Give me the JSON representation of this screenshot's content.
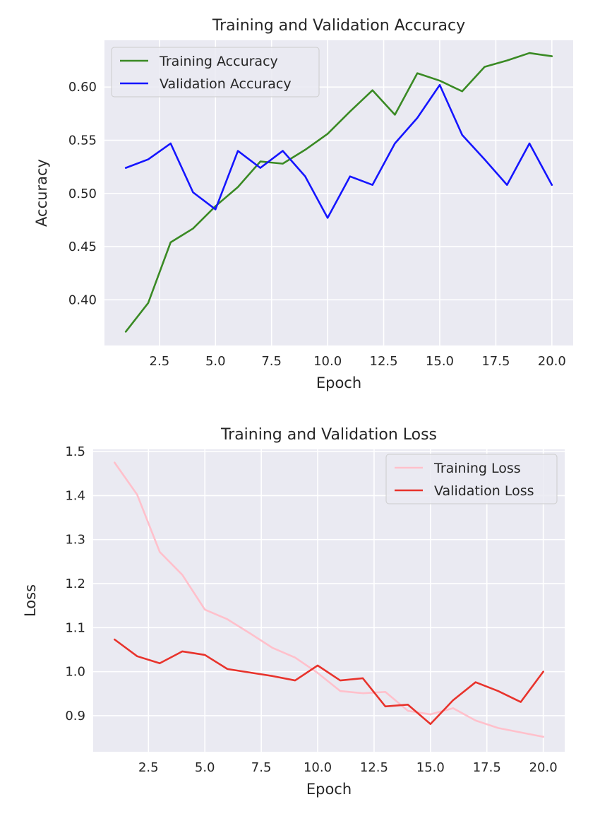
{
  "chart_data": [
    {
      "type": "line",
      "title": "Training and Validation Accuracy",
      "xlabel": "Epoch",
      "ylabel": "Accuracy",
      "xlim": [
        0.05,
        20.95
      ],
      "ylim": [
        0.357,
        0.644
      ],
      "xticks": [
        2.5,
        5.0,
        7.5,
        10.0,
        12.5,
        15.0,
        17.5,
        20.0
      ],
      "xtick_labels": [
        "2.5",
        "5.0",
        "7.5",
        "10.0",
        "12.5",
        "15.0",
        "17.5",
        "20.0"
      ],
      "yticks": [
        0.4,
        0.45,
        0.5,
        0.55,
        0.6
      ],
      "ytick_labels": [
        "0.40",
        "0.45",
        "0.50",
        "0.55",
        "0.60"
      ],
      "grid": true,
      "legend_position": "top-left",
      "x": [
        1,
        2,
        3,
        4,
        5,
        6,
        7,
        8,
        9,
        10,
        11,
        12,
        13,
        14,
        15,
        16,
        17,
        18,
        19,
        20
      ],
      "series": [
        {
          "name": "Training Accuracy",
          "color": "#3a8a24",
          "values": [
            0.37,
            0.397,
            0.454,
            0.467,
            0.488,
            0.506,
            0.53,
            0.528,
            0.541,
            0.556,
            0.577,
            0.597,
            0.574,
            0.613,
            0.606,
            0.596,
            0.619,
            0.625,
            0.632,
            0.629
          ]
        },
        {
          "name": "Validation Accuracy",
          "color": "#1515ff",
          "values": [
            0.524,
            0.532,
            0.547,
            0.501,
            0.485,
            0.54,
            0.524,
            0.54,
            0.516,
            0.477,
            0.516,
            0.508,
            0.547,
            0.571,
            0.602,
            0.555,
            0.532,
            0.508,
            0.547,
            0.508
          ]
        }
      ]
    },
    {
      "type": "line",
      "title": "Training and Validation Loss",
      "xlabel": "Epoch",
      "ylabel": "Loss",
      "xlim": [
        0.05,
        20.95
      ],
      "ylim": [
        0.818,
        1.505
      ],
      "xticks": [
        2.5,
        5.0,
        7.5,
        10.0,
        12.5,
        15.0,
        17.5,
        20.0
      ],
      "xtick_labels": [
        "2.5",
        "5.0",
        "7.5",
        "10.0",
        "12.5",
        "15.0",
        "17.5",
        "20.0"
      ],
      "yticks": [
        0.9,
        1.0,
        1.1,
        1.2,
        1.3,
        1.4,
        1.5
      ],
      "ytick_labels": [
        "0.9",
        "1.0",
        "1.1",
        "1.2",
        "1.3",
        "1.4",
        "1.5"
      ],
      "grid": true,
      "legend_position": "top-right",
      "x": [
        1,
        2,
        3,
        4,
        5,
        6,
        7,
        8,
        9,
        10,
        11,
        12,
        13,
        14,
        15,
        16,
        17,
        18,
        19,
        20
      ],
      "series": [
        {
          "name": "Training Loss",
          "color": "#ffc0cb",
          "values": [
            1.475,
            1.402,
            1.272,
            1.22,
            1.141,
            1.119,
            1.087,
            1.054,
            1.032,
            0.997,
            0.956,
            0.951,
            0.954,
            0.911,
            0.903,
            0.917,
            0.889,
            0.872,
            0.862,
            0.852
          ]
        },
        {
          "name": "Validation Loss",
          "color": "#e8332c",
          "values": [
            1.073,
            1.035,
            1.019,
            1.046,
            1.038,
            1.006,
            0.998,
            0.99,
            0.98,
            1.014,
            0.98,
            0.985,
            0.921,
            0.925,
            0.881,
            0.935,
            0.976,
            0.956,
            0.931,
            1.0
          ]
        }
      ]
    }
  ]
}
